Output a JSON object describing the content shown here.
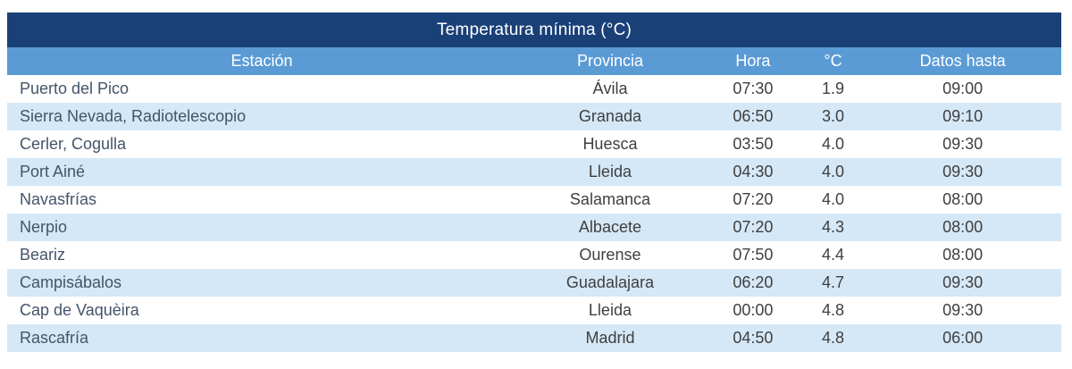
{
  "chart_data": {
    "type": "table",
    "title": "Temperatura mínima (°C)",
    "columns": [
      "Estación",
      "Provincia",
      "Hora",
      "°C",
      "Datos hasta"
    ],
    "rows": [
      {
        "estacion": "Puerto del Pico",
        "provincia": "Ávila",
        "hora": "07:30",
        "temp": "1.9",
        "datos_hasta": "09:00"
      },
      {
        "estacion": "Sierra Nevada, Radiotelescopio",
        "provincia": "Granada",
        "hora": "06:50",
        "temp": "3.0",
        "datos_hasta": "09:10"
      },
      {
        "estacion": "Cerler, Cogulla",
        "provincia": "Huesca",
        "hora": "03:50",
        "temp": "4.0",
        "datos_hasta": "09:30"
      },
      {
        "estacion": "Port Ainé",
        "provincia": "Lleida",
        "hora": "04:30",
        "temp": "4.0",
        "datos_hasta": "09:30"
      },
      {
        "estacion": "Navasfrías",
        "provincia": "Salamanca",
        "hora": "07:20",
        "temp": "4.0",
        "datos_hasta": "08:00"
      },
      {
        "estacion": "Nerpio",
        "provincia": "Albacete",
        "hora": "07:20",
        "temp": "4.3",
        "datos_hasta": "08:00"
      },
      {
        "estacion": "Beariz",
        "provincia": "Ourense",
        "hora": "07:50",
        "temp": "4.4",
        "datos_hasta": "08:00"
      },
      {
        "estacion": "Campisábalos",
        "provincia": "Guadalajara",
        "hora": "06:20",
        "temp": "4.7",
        "datos_hasta": "09:30"
      },
      {
        "estacion": "Cap de Vaquèira",
        "provincia": "Lleida",
        "hora": "00:00",
        "temp": "4.8",
        "datos_hasta": "09:30"
      },
      {
        "estacion": "Rascafría",
        "provincia": "Madrid",
        "hora": "04:50",
        "temp": "4.8",
        "datos_hasta": "06:00"
      }
    ],
    "layout": {
      "banded_rows": true,
      "band_colors": [
        "#ffffff",
        "#d5e8f7"
      ]
    },
    "colors": {
      "title_bg": "#1a4078",
      "header_bg": "#5b9bd5",
      "band_bg": "#d5e8f7",
      "header_text": "#ffffff",
      "station_text": "#44546a",
      "value_text": "#3f3f3f"
    }
  }
}
